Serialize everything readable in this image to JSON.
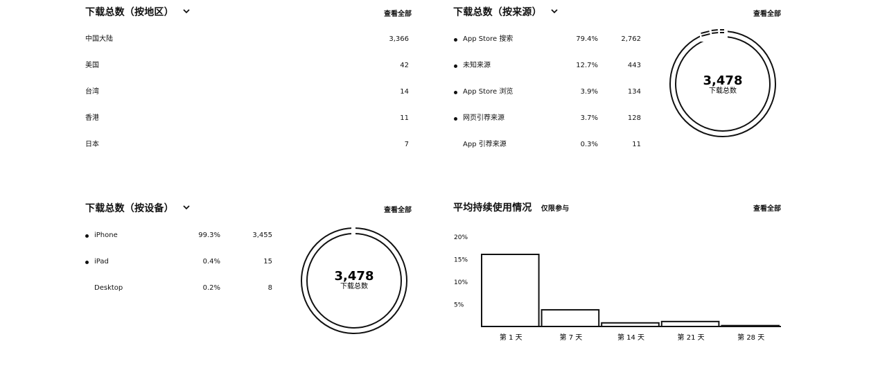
{
  "region_panel": {
    "title": "下载总数（按地区）",
    "view_all": "查看全部",
    "rows": [
      {
        "label": "中国大陆",
        "value": "3,366"
      },
      {
        "label": "美国",
        "value": "42"
      },
      {
        "label": "台湾",
        "value": "14"
      },
      {
        "label": "香港",
        "value": "11"
      },
      {
        "label": "日本",
        "value": "7"
      }
    ]
  },
  "source_panel": {
    "title": "下载总数（按来源）",
    "view_all": "查看全部",
    "rows": [
      {
        "label": "App Store 搜索",
        "percent": "79.4%",
        "value": "2,762",
        "dot": true
      },
      {
        "label": "未知来源",
        "percent": "12.7%",
        "value": "443",
        "dot": true
      },
      {
        "label": "App Store 浏览",
        "percent": "3.9%",
        "value": "134",
        "dot": true
      },
      {
        "label": "网页引荐来源",
        "percent": "3.7%",
        "value": "128",
        "dot": true
      },
      {
        "label": "App 引荐来源",
        "percent": "0.3%",
        "value": "11",
        "dot": false
      }
    ],
    "donut_total": "3,478",
    "donut_caption": "下载总数"
  },
  "device_panel": {
    "title": "下载总数（按设备）",
    "view_all": "查看全部",
    "rows": [
      {
        "label": "iPhone",
        "percent": "99.3%",
        "value": "3,455",
        "dot": true
      },
      {
        "label": "iPad",
        "percent": "0.4%",
        "value": "15",
        "dot": true
      },
      {
        "label": "Desktop",
        "percent": "0.2%",
        "value": "8",
        "dot": false
      }
    ],
    "donut_total": "3,478",
    "donut_caption": "下载总数"
  },
  "retention_panel": {
    "title": "平均持续使用情况",
    "subtitle": "仅限参与",
    "view_all": "查看全部"
  },
  "chart_data": {
    "type": "bar",
    "categories": [
      "第 1 天",
      "第 7 天",
      "第 14 天",
      "第 21 天",
      "第 28 天"
    ],
    "values": [
      16,
      3.7,
      0.8,
      1.1,
      0.2
    ],
    "y_ticks": [
      "20%",
      "15%",
      "10%",
      "5%"
    ],
    "ylim": [
      0,
      20
    ],
    "grid": false
  }
}
